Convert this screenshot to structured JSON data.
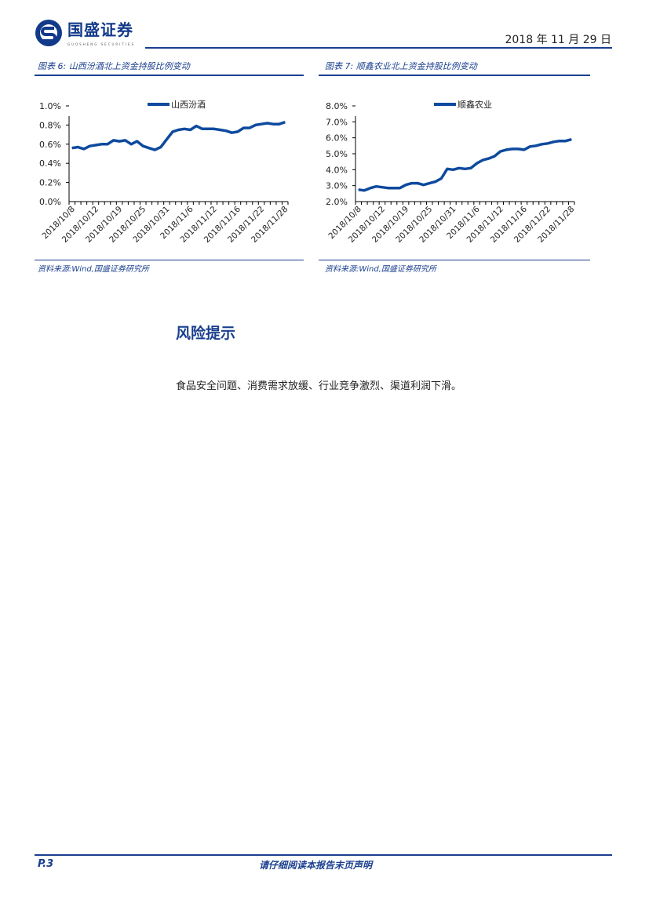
{
  "header": {
    "company": "国盛证券",
    "company_en": "GUOSHENG SECURITIES",
    "date": "2018 年 11 月 29 日"
  },
  "colors": {
    "brand": "#1a3f8f",
    "series": "#0e4a9e"
  },
  "figures": [
    {
      "title": "图表 6:  山西汾酒北上资金持股比例变动",
      "source": "资料来源:Wind,国盛证券研究所"
    },
    {
      "title": "图表 7:  顺鑫农业北上资金持股比例变动",
      "source": "资料来源:Wind,国盛证券研究所"
    }
  ],
  "chart_data": [
    {
      "type": "line",
      "legend_position": "top",
      "ylim": [
        0,
        1.0
      ],
      "yticks": [
        "0.0%",
        "0.2%",
        "0.4%",
        "0.6%",
        "0.8%",
        "1.0%"
      ],
      "xticks": [
        "2018/10/8",
        "2018/10/12",
        "2018/10/19",
        "2018/10/25",
        "2018/10/31",
        "2018/11/6",
        "2018/11/12",
        "2018/11/16",
        "2018/11/22",
        "2018/11/28"
      ],
      "series": [
        {
          "name": "山西汾酒",
          "values": [
            0.56,
            0.57,
            0.55,
            0.58,
            0.59,
            0.6,
            0.6,
            0.64,
            0.63,
            0.64,
            0.6,
            0.63,
            0.58,
            0.56,
            0.54,
            0.57,
            0.65,
            0.73,
            0.75,
            0.76,
            0.75,
            0.79,
            0.76,
            0.76,
            0.76,
            0.75,
            0.74,
            0.72,
            0.73,
            0.77,
            0.77,
            0.8,
            0.81,
            0.82,
            0.81,
            0.81,
            0.83
          ]
        }
      ]
    },
    {
      "type": "line",
      "legend_position": "top",
      "ylim": [
        2.0,
        8.0
      ],
      "yticks": [
        "2.0%",
        "3.0%",
        "4.0%",
        "5.0%",
        "6.0%",
        "7.0%",
        "8.0%"
      ],
      "xticks": [
        "2018/10/8",
        "2018/10/12",
        "2018/10/19",
        "2018/10/25",
        "2018/10/31",
        "2018/11/6",
        "2018/11/12",
        "2018/11/16",
        "2018/11/22",
        "2018/11/28"
      ],
      "series": [
        {
          "name": "顺鑫农业",
          "values": [
            2.75,
            2.7,
            2.85,
            2.95,
            2.9,
            2.85,
            2.85,
            2.85,
            3.05,
            3.15,
            3.15,
            3.05,
            3.15,
            3.25,
            3.45,
            4.05,
            4.0,
            4.1,
            4.05,
            4.1,
            4.4,
            4.6,
            4.7,
            4.85,
            5.15,
            5.25,
            5.3,
            5.3,
            5.25,
            5.45,
            5.5,
            5.6,
            5.65,
            5.75,
            5.8,
            5.8,
            5.9
          ]
        }
      ]
    }
  ],
  "risk": {
    "title": "风险提示",
    "body": "食品安全问题、消费需求放缓、行业竞争激烈、渠道利润下滑。"
  },
  "footer": {
    "page": "P.3",
    "notice": "请仔细阅读本报告末页声明"
  }
}
